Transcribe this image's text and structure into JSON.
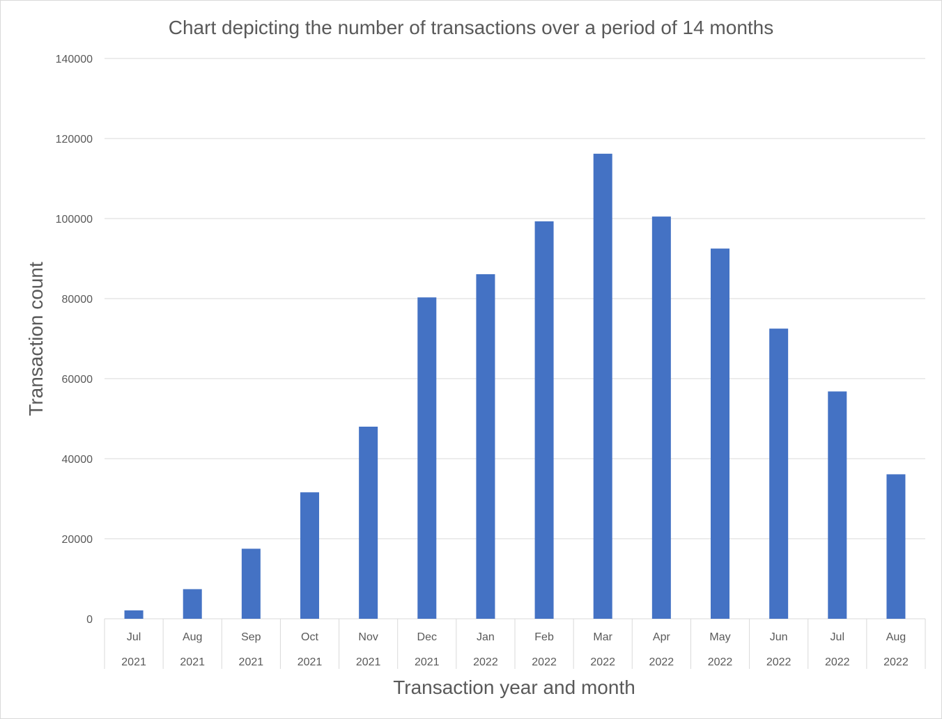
{
  "chart_data": {
    "type": "bar",
    "title": "Chart depicting the number of transactions over a period of 14 months",
    "xlabel": "Transaction year and month",
    "ylabel": "Transaction count",
    "ylim": [
      0,
      140000
    ],
    "yticks": [
      "0",
      "20000",
      "40000",
      "60000",
      "80000",
      "100000",
      "120000",
      "140000"
    ],
    "categories": [
      {
        "month": "Jul",
        "year": "2021"
      },
      {
        "month": "Aug",
        "year": "2021"
      },
      {
        "month": "Sep",
        "year": "2021"
      },
      {
        "month": "Oct",
        "year": "2021"
      },
      {
        "month": "Nov",
        "year": "2021"
      },
      {
        "month": "Dec",
        "year": "2021"
      },
      {
        "month": "Jan",
        "year": "2022"
      },
      {
        "month": "Feb",
        "year": "2022"
      },
      {
        "month": "Mar",
        "year": "2022"
      },
      {
        "month": "Apr",
        "year": "2022"
      },
      {
        "month": "May",
        "year": "2022"
      },
      {
        "month": "Jun",
        "year": "2022"
      },
      {
        "month": "Jul",
        "year": "2022"
      },
      {
        "month": "Aug",
        "year": "2022"
      }
    ],
    "values": [
      2100,
      7400,
      17500,
      31600,
      48000,
      80300,
      86100,
      99300,
      116200,
      100500,
      92500,
      72500,
      56800,
      36100
    ],
    "grid": true,
    "legend": "none",
    "bar_color": "#4472c4"
  }
}
